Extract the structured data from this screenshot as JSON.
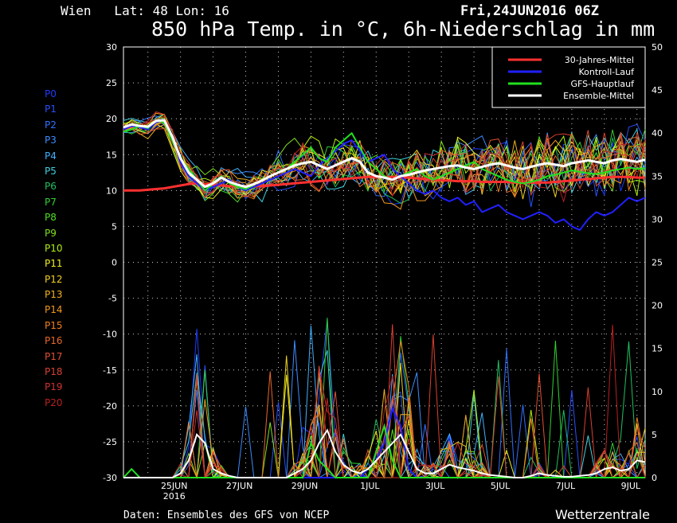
{
  "header": {
    "location": "Wien   Lat: 48 Lon: 16",
    "run": "Fri,24JUN2016 06Z",
    "title": "850 hPa Temp. in °C, 6h-Niederschlag in mm"
  },
  "footer": {
    "source": "Daten: Ensembles des GFS von NCEP",
    "brand": "Wetterzentrale"
  },
  "members": [
    {
      "label": "P0",
      "color": "#1e3cff"
    },
    {
      "label": "P1",
      "color": "#2850ff"
    },
    {
      "label": "P2",
      "color": "#3070ff"
    },
    {
      "label": "P3",
      "color": "#3c8cff"
    },
    {
      "label": "P4",
      "color": "#40b0ff"
    },
    {
      "label": "P5",
      "color": "#40d0e0"
    },
    {
      "label": "P6",
      "color": "#20c060"
    },
    {
      "label": "P7",
      "color": "#30d030"
    },
    {
      "label": "P8",
      "color": "#50e020"
    },
    {
      "label": "P9",
      "color": "#80e020"
    },
    {
      "label": "P10",
      "color": "#b0f010"
    },
    {
      "label": "P11",
      "color": "#f0f020"
    },
    {
      "label": "P12",
      "color": "#f0d020"
    },
    {
      "label": "P13",
      "color": "#f0b020"
    },
    {
      "label": "P14",
      "color": "#f09820"
    },
    {
      "label": "P15",
      "color": "#f08020"
    },
    {
      "label": "P16",
      "color": "#e86828"
    },
    {
      "label": "P17",
      "color": "#e05030"
    },
    {
      "label": "P18",
      "color": "#d84030"
    },
    {
      "label": "P19",
      "color": "#d03030"
    },
    {
      "label": "P20",
      "color": "#b82020"
    }
  ],
  "chart_data": {
    "type": "line",
    "x_start": "2016-06-24 06Z",
    "x_step_hours": 6,
    "x_tick_labels": [
      "25JUN\n2016",
      "27JUN",
      "29JUN",
      "1JUL",
      "3JUL",
      "5JUL",
      "7JUL",
      "9JUL"
    ],
    "y_left": {
      "min": -30,
      "max": 30,
      "step": 5
    },
    "y_right": {
      "min": 0,
      "max": 50,
      "step": 5
    },
    "grid": true,
    "legend_position": "top-right",
    "legend": [
      {
        "name": "30-Jahres-Mittel",
        "color": "#ff3030"
      },
      {
        "name": "Kontroll-Lauf",
        "color": "#2020ff"
      },
      {
        "name": "GFS-Hauptlauf",
        "color": "#20e020"
      },
      {
        "name": "Ensemble-Mittel",
        "color": "#ffffff"
      }
    ],
    "temp_series": [
      {
        "name": "30-Jahres-Mittel",
        "color": "#ff3030",
        "width": 3,
        "values": [
          10,
          10,
          10,
          10.1,
          10.2,
          10.3,
          10.5,
          10.7,
          10.9,
          11,
          10.9,
          10.8,
          10.7,
          10.6,
          10.6,
          10.6,
          10.6,
          10.6,
          10.7,
          10.8,
          10.9,
          11,
          11.1,
          11.2,
          11.3,
          11.4,
          11.5,
          11.6,
          11.7,
          11.8,
          11.9,
          11.9,
          11.9,
          11.9,
          11.8,
          11.8,
          11.7,
          11.6,
          11.5,
          11.4,
          11.4,
          11.3,
          11.3,
          11.3,
          11.2,
          11.2,
          11.2,
          11.2,
          11.1,
          11.1,
          11.1,
          11.1,
          11.1,
          11.2,
          11.3,
          11.4,
          11.5,
          11.6,
          11.7,
          11.8,
          11.9,
          11.9,
          11.9,
          11.8,
          11.8
        ]
      },
      {
        "name": "Kontroll-Lauf",
        "color": "#2020ff",
        "width": 2,
        "values": [
          18.5,
          19,
          18.8,
          18.5,
          19.5,
          19.8,
          17.5,
          14,
          12,
          11,
          10,
          10.5,
          11,
          11.5,
          10.5,
          10,
          10.5,
          11,
          11.5,
          12,
          12.5,
          13,
          12.5,
          12,
          13.5,
          14.5,
          15.5,
          16.5,
          17,
          15.5,
          14,
          14.5,
          15,
          13,
          12,
          11,
          10,
          9.5,
          10,
          9,
          8.5,
          9,
          8,
          8.5,
          7,
          7.5,
          8,
          7,
          6.5,
          6,
          6.5,
          7,
          6.5,
          5.5,
          6,
          5,
          4.5,
          6,
          7,
          6.5,
          7,
          8,
          9,
          8.5,
          9
        ]
      },
      {
        "name": "GFS-Hauptlauf",
        "color": "#20e020",
        "width": 2,
        "values": [
          18.2,
          18.5,
          19,
          18.7,
          19.8,
          19.5,
          17,
          14.5,
          13,
          11.5,
          10,
          11,
          12,
          11,
          10.5,
          10.2,
          10.8,
          11.5,
          12,
          12.5,
          13,
          14,
          15,
          16,
          14.5,
          14,
          16,
          17,
          18,
          16,
          14,
          13,
          12,
          11.5,
          12,
          12.5,
          13,
          12,
          11.5,
          12,
          12.5,
          13,
          13.5,
          14,
          13,
          12.5,
          12,
          11.5,
          11.2,
          11,
          11.2,
          11.5,
          12,
          12.2,
          12.5,
          12.8,
          12.6,
          12.4,
          12.3,
          12.5,
          12.8,
          13,
          13.2,
          13,
          13.1
        ]
      },
      {
        "name": "Ensemble-Mittel",
        "color": "#ffffff",
        "width": 3,
        "values": [
          18.8,
          19.2,
          19,
          18.9,
          19.7,
          19.8,
          17.5,
          14.5,
          12.5,
          11.5,
          10.5,
          11,
          11.8,
          11.2,
          10.8,
          10.5,
          10.9,
          11.4,
          12,
          12.5,
          13,
          13.5,
          13.8,
          14,
          13.5,
          13,
          13.5,
          14,
          14.5,
          14,
          12.5,
          12,
          11.8,
          11.5,
          12,
          12.2,
          12.5,
          12.8,
          13,
          13.2,
          13.4,
          13.5,
          13.2,
          13,
          13.3,
          13.6,
          13.8,
          13.5,
          13.2,
          13,
          13.3,
          13.6,
          13.8,
          13.6,
          13.4,
          13.8,
          14,
          14.2,
          14,
          13.8,
          14.2,
          14.4,
          14.2,
          14,
          14.3
        ]
      }
    ],
    "precip_series": [
      {
        "name": "Kontroll-Lauf",
        "color": "#2020ff",
        "values": [
          0,
          0,
          0,
          0,
          0,
          0,
          0,
          0,
          0,
          0,
          0,
          0,
          0,
          0,
          0,
          0,
          0,
          0,
          0,
          0,
          0,
          0,
          0,
          0,
          0,
          0,
          0,
          0,
          0,
          0,
          1,
          2,
          4,
          8,
          6,
          1,
          0,
          0,
          0,
          0,
          0,
          0,
          0,
          0,
          0,
          0,
          0,
          0,
          0,
          0,
          0,
          0,
          0,
          0,
          0,
          0,
          0,
          0,
          0,
          0,
          0,
          0,
          0,
          0,
          0
        ]
      },
      {
        "name": "GFS-Hauptlauf",
        "color": "#20e020",
        "values": [
          0,
          1,
          0,
          0,
          0,
          0,
          0,
          0,
          0,
          0,
          0,
          0,
          0,
          0,
          0,
          0,
          0,
          0,
          0,
          0,
          0,
          0,
          0,
          4,
          2,
          1,
          0,
          0,
          0,
          0,
          0,
          3,
          6,
          2,
          0,
          0,
          0,
          0,
          0,
          0,
          0,
          0,
          0,
          0,
          0,
          0,
          0,
          0,
          0,
          0,
          0,
          0,
          0,
          0,
          0,
          0,
          0,
          0,
          0,
          0,
          0,
          0,
          0,
          0,
          0
        ]
      },
      {
        "name": "Ensemble-Mittel",
        "color": "#ffffff",
        "values": [
          0,
          0,
          0,
          0,
          0,
          0,
          0,
          0.5,
          2,
          5,
          4,
          1,
          0.5,
          0.2,
          0,
          0,
          0,
          0,
          0,
          0,
          0,
          0.5,
          1,
          2,
          4,
          5.5,
          3,
          1.5,
          0.8,
          0.5,
          1,
          2,
          3,
          4,
          5,
          3,
          1,
          0.5,
          0.5,
          1,
          1.5,
          1.2,
          1,
          0.8,
          0.5,
          0.3,
          0.2,
          0.1,
          0,
          0,
          0.2,
          0.5,
          0.3,
          0.2,
          0.1,
          0.1,
          0.2,
          0.3,
          0.5,
          1,
          1.2,
          0.8,
          1,
          2,
          1.8
        ]
      }
    ]
  }
}
